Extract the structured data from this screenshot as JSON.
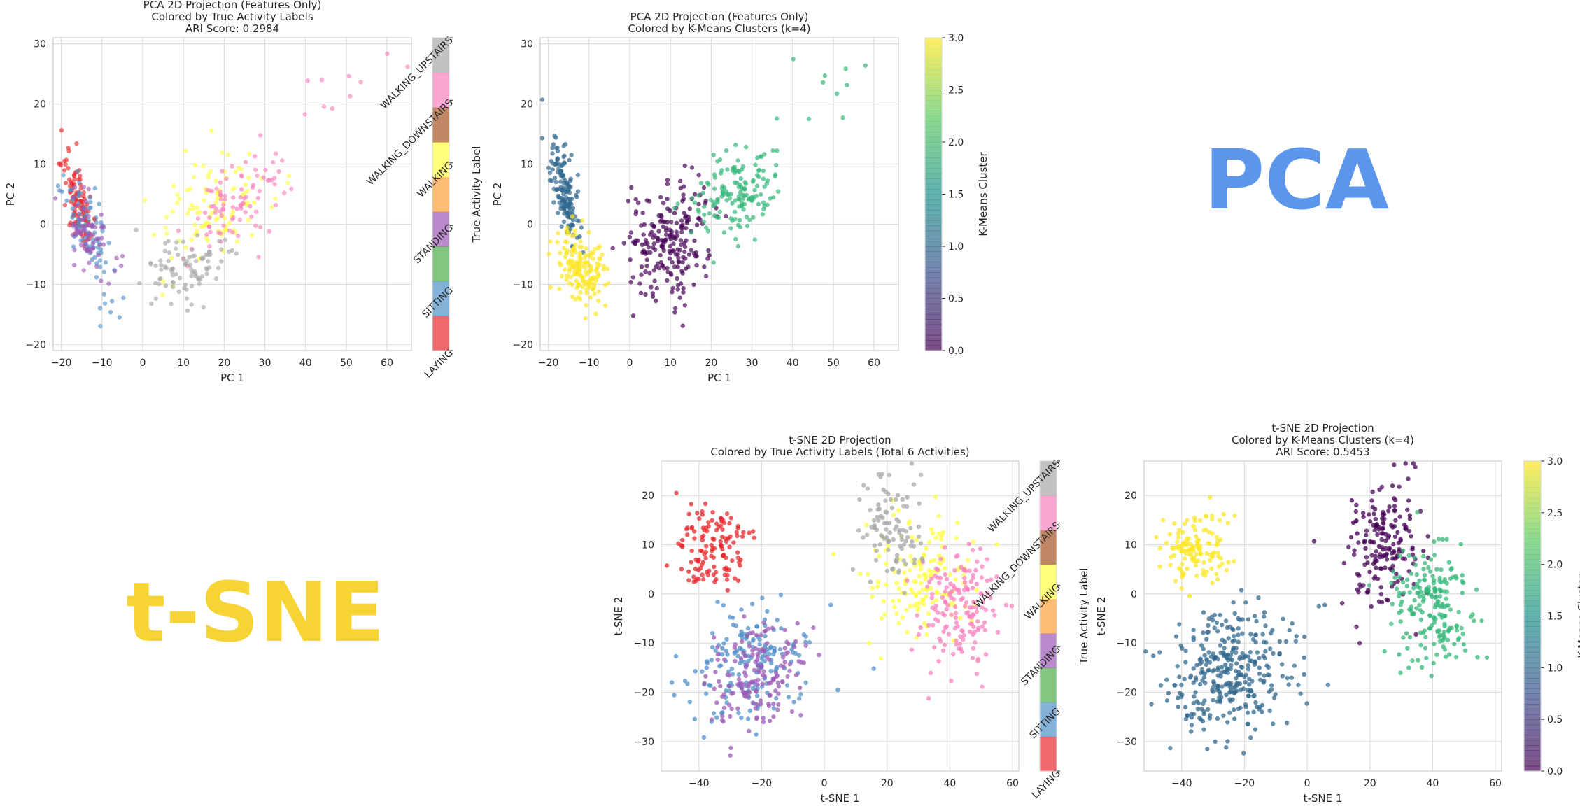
{
  "side_labels": [
    {
      "text": "PCA",
      "color": "#5b96ec"
    },
    {
      "text": "t-SNE",
      "color": "#f6d433"
    }
  ],
  "colormaps": {
    "activities": [
      "#e8282c",
      "#5090c8",
      "#4daf4a",
      "#9b59b6",
      "#ff9f3a",
      "#ffff40",
      "#a65628",
      "#f781bf",
      "#a8a8a8"
    ],
    "viridis": [
      "#440154",
      "#3b528b",
      "#21918c",
      "#5ec962",
      "#fde725"
    ]
  },
  "chart_data": [
    {
      "type": "scatter",
      "title": [
        "PCA 2D Projection (Features Only)",
        "Colored by True Activity Labels",
        "ARI Score: 0.2984"
      ],
      "xlabel": "PC 1",
      "ylabel": "PC 2",
      "xlim": [
        -22,
        66
      ],
      "ylim": [
        -21,
        31
      ],
      "xticks": [
        "-20",
        "-10",
        "0",
        "10",
        "20",
        "30",
        "40",
        "50",
        "60"
      ],
      "yticks": [
        "-20",
        "-10",
        "0",
        "10",
        "20",
        "30"
      ],
      "grid": true,
      "point_alpha": 0.65,
      "colorbar": {
        "kind": "categorical",
        "label": "True Activity Label",
        "tick_labels": [
          "LAYING",
          "SITTING",
          "STANDING",
          "WALKING",
          "WALKING_DOWNSTAIRS",
          "WALKING_UPSTAIRS"
        ]
      },
      "clusters": [
        {
          "category": "LAYING",
          "color": "#e8282c",
          "n": 110,
          "center": [
            -16,
            4
          ],
          "spread": [
            1.3,
            4.5
          ],
          "rot": 0.35
        },
        {
          "category": "SITTING",
          "color": "#5090c8",
          "n": 80,
          "center": [
            -14,
            0
          ],
          "spread": [
            2.0,
            4.5
          ],
          "rot": 0.6
        },
        {
          "category": "SITTING",
          "color": "#5090c8",
          "n": 8,
          "center": [
            -8,
            -15
          ],
          "spread": [
            2.0,
            2.5
          ],
          "rot": 0
        },
        {
          "category": "STANDING",
          "color": "#9b59b6",
          "n": 70,
          "center": [
            -13,
            -2
          ],
          "spread": [
            2.2,
            4.0
          ],
          "rot": 0.6
        },
        {
          "category": "WALKING",
          "color": "#ffff40",
          "n": 110,
          "center": [
            17,
            2
          ],
          "spread": [
            6.5,
            4.0
          ],
          "rot": 0.45
        },
        {
          "category": "WALKING_DOWNSTAIRS",
          "color": "#f781bf",
          "n": 90,
          "center": [
            23,
            3
          ],
          "spread": [
            7.0,
            3.5
          ],
          "rot": 0.4
        },
        {
          "category": "WALKING_DOWNSTAIRS",
          "color": "#f781bf",
          "n": 10,
          "center": [
            48,
            22
          ],
          "spread": [
            7.0,
            3.0
          ],
          "rot": 0.3
        },
        {
          "category": "WALKING_UPSTAIRS",
          "color": "#a8a8a8",
          "n": 90,
          "center": [
            11,
            -7
          ],
          "spread": [
            5.0,
            3.0
          ],
          "rot": 0.3
        }
      ]
    },
    {
      "type": "scatter",
      "title": [
        "PCA 2D Projection (Features Only)",
        "Colored by K-Means Clusters (k=4)"
      ],
      "xlabel": "PC 1",
      "ylabel": "PC 2",
      "xlim": [
        -22,
        66
      ],
      "ylim": [
        -21,
        31
      ],
      "xticks": [
        "-20",
        "-10",
        "0",
        "10",
        "20",
        "30",
        "40",
        "50",
        "60"
      ],
      "yticks": [
        "-20",
        "-10",
        "0",
        "10",
        "20",
        "30"
      ],
      "grid": true,
      "point_alpha": 0.7,
      "colorbar": {
        "kind": "continuous",
        "label": "K-Means Cluster",
        "range": [
          0,
          3
        ],
        "tick_labels": [
          "0.0",
          "0.5",
          "1.0",
          "1.5",
          "2.0",
          "2.5",
          "3.0"
        ]
      },
      "clusters": [
        {
          "cluster": 0,
          "color": "#440154",
          "n": 220,
          "center": [
            10,
            -3
          ],
          "spread": [
            5.5,
            4.5
          ],
          "rot": 0.6
        },
        {
          "cluster": 1,
          "color": "#31688e",
          "n": 150,
          "center": [
            -16,
            5
          ],
          "spread": [
            1.4,
            4.0
          ],
          "rot": 0.3
        },
        {
          "cluster": 2,
          "color": "#35b779",
          "n": 150,
          "center": [
            26,
            5
          ],
          "spread": [
            6.0,
            3.5
          ],
          "rot": 0.4
        },
        {
          "cluster": 2,
          "color": "#35b779",
          "n": 10,
          "center": [
            48,
            22
          ],
          "spread": [
            7.0,
            3.0
          ],
          "rot": 0.3
        },
        {
          "cluster": 3,
          "color": "#fde725",
          "n": 160,
          "center": [
            -12,
            -7
          ],
          "spread": [
            2.5,
            3.5
          ],
          "rot": 0.7
        }
      ]
    },
    {
      "type": "scatter",
      "title": [
        "t-SNE 2D Projection",
        "Colored by True Activity Labels (Total 6 Activities)"
      ],
      "xlabel": "t-SNE 1",
      "ylabel": "t-SNE 2",
      "xlim": [
        -52,
        62
      ],
      "ylim": [
        -36,
        27
      ],
      "xticks": [
        "-40",
        "-20",
        "0",
        "20",
        "40",
        "60"
      ],
      "yticks": [
        "-30",
        "-20",
        "-10",
        "0",
        "10",
        "20"
      ],
      "grid": true,
      "point_alpha": 0.75,
      "colorbar": {
        "kind": "categorical",
        "label": "True Activity Label",
        "tick_labels": [
          "LAYING",
          "SITTING",
          "STANDING",
          "WALKING",
          "WALKING_DOWNSTAIRS",
          "WALKING_UPSTAIRS"
        ]
      },
      "clusters": [
        {
          "category": "LAYING",
          "color": "#e8282c",
          "n": 130,
          "center": [
            -35,
            9
          ],
          "spread": [
            5.5,
            4.0
          ],
          "rot": 0
        },
        {
          "category": "SITTING",
          "color": "#5090c8",
          "n": 180,
          "center": [
            -24,
            -15
          ],
          "spread": [
            10.0,
            6.0
          ],
          "rot": 0.3
        },
        {
          "category": "STANDING",
          "color": "#9b59b6",
          "n": 160,
          "center": [
            -22,
            -17
          ],
          "spread": [
            8.0,
            5.0
          ],
          "rot": 0.3
        },
        {
          "category": "WALKING",
          "color": "#ffff40",
          "n": 150,
          "center": [
            32,
            3
          ],
          "spread": [
            8.0,
            6.0
          ],
          "rot": 0
        },
        {
          "category": "WALKING_DOWNSTAIRS",
          "color": "#f781bf",
          "n": 160,
          "center": [
            43,
            -2
          ],
          "spread": [
            6.0,
            6.0
          ],
          "rot": -0.4
        },
        {
          "category": "WALKING_UPSTAIRS",
          "color": "#a8a8a8",
          "n": 100,
          "center": [
            22,
            13
          ],
          "spread": [
            5.0,
            5.0
          ],
          "rot": 0
        }
      ]
    },
    {
      "type": "scatter",
      "title": [
        "t-SNE 2D Projection",
        "Colored by K-Means Clusters (k=4)",
        "ARI Score: 0.5453"
      ],
      "xlabel": "t-SNE 1",
      "ylabel": "t-SNE 2",
      "xlim": [
        -52,
        62
      ],
      "ylim": [
        -36,
        27
      ],
      "xticks": [
        "-40",
        "-20",
        "0",
        "20",
        "40",
        "60"
      ],
      "yticks": [
        "-30",
        "-20",
        "-10",
        "0",
        "10",
        "20"
      ],
      "grid": true,
      "point_alpha": 0.75,
      "colorbar": {
        "kind": "continuous",
        "label": "K-Means Cluster",
        "range": [
          0,
          3
        ],
        "tick_labels": [
          "0.0",
          "0.5",
          "1.0",
          "1.5",
          "2.0",
          "2.5",
          "3.0"
        ]
      },
      "clusters": [
        {
          "cluster": 0,
          "color": "#440154",
          "n": 180,
          "center": [
            25,
            10
          ],
          "spread": [
            6.0,
            7.0
          ],
          "rot": -0.3
        },
        {
          "cluster": 1,
          "color": "#31688e",
          "n": 340,
          "center": [
            -24,
            -16
          ],
          "spread": [
            10.0,
            6.5
          ],
          "rot": 0.3
        },
        {
          "cluster": 2,
          "color": "#35b779",
          "n": 200,
          "center": [
            40,
            -2
          ],
          "spread": [
            7.0,
            6.0
          ],
          "rot": -0.4
        },
        {
          "cluster": 3,
          "color": "#fde725",
          "n": 130,
          "center": [
            -35,
            9
          ],
          "spread": [
            5.5,
            4.0
          ],
          "rot": 0
        }
      ]
    }
  ]
}
